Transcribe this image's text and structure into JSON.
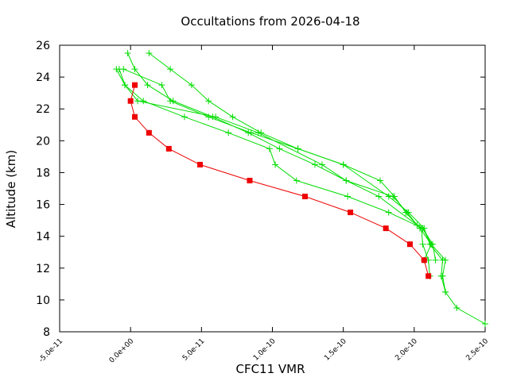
{
  "chart_data": {
    "type": "line",
    "title": "Occultations from 2026-04-18",
    "xlabel": "CFC11 VMR",
    "ylabel": "Altitude (km)",
    "xlim": [
      -5e-11,
      2.5e-10
    ],
    "ylim": [
      8,
      26
    ],
    "x_ticks": [
      -5e-11,
      0,
      5e-11,
      1e-10,
      1.5e-10,
      2e-10,
      2.5e-10
    ],
    "x_tick_labels": [
      "-5.0e-11",
      "0.0e+00",
      "5.0e-11",
      "1.0e-10",
      "1.5e-10",
      "2.0e-10",
      "2.5e-10"
    ],
    "y_ticks": [
      8,
      10,
      12,
      14,
      16,
      18,
      20,
      22,
      24,
      26
    ],
    "y_tick_labels": [
      "8",
      "10",
      "12",
      "14",
      "16",
      "18",
      "20",
      "22",
      "24",
      "26"
    ],
    "grid": false,
    "legend": "none",
    "series": [
      {
        "color": "#00dd00",
        "marker": "plus",
        "points": [
          [
            2.5e-10,
            8.5
          ],
          [
            2.3e-10,
            9.5
          ],
          [
            2.22e-10,
            10.5
          ],
          [
            2.2e-10,
            11.5
          ],
          [
            2.22e-10,
            12.5
          ],
          [
            2.12e-10,
            13.5
          ],
          [
            2.06e-10,
            14.5
          ],
          [
            2.02e-10,
            14.7
          ],
          [
            1.95e-10,
            15.5
          ],
          [
            1.85e-10,
            16.5
          ],
          [
            1.52e-10,
            17.5
          ],
          [
            1.3e-10,
            18.5
          ],
          [
            1.05e-10,
            19.5
          ],
          [
            8.3e-11,
            20.5
          ],
          [
            5.8e-11,
            21.5
          ],
          [
            3e-11,
            22.5
          ],
          [
            1.2e-11,
            23.5
          ],
          [
            3e-12,
            24.5
          ],
          [
            -2e-12,
            25.5
          ]
        ]
      },
      {
        "color": "#00dd00",
        "marker": "plus",
        "points": [
          [
            2.22e-10,
            10.5
          ],
          [
            2.19e-10,
            11.5
          ],
          [
            2.2e-10,
            12.5
          ],
          [
            2.11e-10,
            13.5
          ],
          [
            2.07e-10,
            14.5
          ],
          [
            1.96e-10,
            15.5
          ],
          [
            1.82e-10,
            16.5
          ],
          [
            1.5e-10,
            18.5
          ],
          [
            1.18e-10,
            19.5
          ],
          [
            8.5e-11,
            20.5
          ],
          [
            5.5e-11,
            21.5
          ],
          [
            2.8e-11,
            22.5
          ],
          [
            2.2e-11,
            23.5
          ],
          [
            -5e-12,
            24.5
          ]
        ]
      },
      {
        "color": "#00dd00",
        "marker": "plus",
        "points": [
          [
            2.07e-10,
            12.5
          ],
          [
            2.12e-10,
            13.5
          ],
          [
            2.04e-10,
            14.5
          ],
          [
            1.94e-10,
            15.5
          ],
          [
            1.86e-10,
            16.5
          ],
          [
            1.76e-10,
            17.5
          ],
          [
            1.5e-10,
            18.5
          ],
          [
            1.18e-10,
            19.5
          ],
          [
            9.2e-11,
            20.5
          ],
          [
            7.2e-11,
            21.5
          ],
          [
            5.5e-11,
            22.5
          ],
          [
            4.3e-11,
            23.5
          ],
          [
            2.8e-11,
            24.5
          ],
          [
            1.3e-11,
            25.5
          ]
        ]
      },
      {
        "color": "#00dd00",
        "marker": "plus",
        "points": [
          [
            2.15e-10,
            12.5
          ],
          [
            2.13e-10,
            13.5
          ],
          [
            2.06e-10,
            14.5
          ],
          [
            1.82e-10,
            15.5
          ],
          [
            1.53e-10,
            16.5
          ],
          [
            1.17e-10,
            17.5
          ],
          [
            1.02e-10,
            18.5
          ],
          [
            9.8e-11,
            19.5
          ],
          [
            6.9e-11,
            20.5
          ],
          [
            3.8e-11,
            21.5
          ],
          [
            9e-12,
            22.5
          ],
          [
            -4e-12,
            23.5
          ],
          [
            -8e-12,
            24.5
          ]
        ]
      },
      {
        "color": "#00dd00",
        "marker": "plus",
        "points": [
          [
            2.11e-10,
            11.5
          ],
          [
            2.1e-10,
            12.5
          ],
          [
            2.06e-10,
            13.5
          ],
          [
            2.05e-10,
            14.5
          ],
          [
            1.75e-10,
            16.5
          ],
          [
            1.52e-10,
            17.5
          ],
          [
            1.35e-10,
            18.5
          ],
          [
            9e-11,
            20.5
          ],
          [
            6e-11,
            21.5
          ],
          [
            5e-12,
            22.5
          ],
          [
            -4e-12,
            23.5
          ],
          [
            -1e-11,
            24.5
          ]
        ]
      },
      {
        "color": "#ee0000",
        "marker": "square",
        "points": [
          [
            2.1e-10,
            11.5
          ],
          [
            2.07e-10,
            12.5
          ],
          [
            1.97e-10,
            13.5
          ],
          [
            1.8e-10,
            14.5
          ],
          [
            1.55e-10,
            15.5
          ],
          [
            1.23e-10,
            16.5
          ],
          [
            8.4e-11,
            17.5
          ],
          [
            4.9e-11,
            18.5
          ],
          [
            2.7e-11,
            19.5
          ],
          [
            1.3e-11,
            20.5
          ],
          [
            3e-12,
            21.5
          ],
          [
            0,
            22.5
          ],
          [
            3e-12,
            23.5
          ]
        ]
      }
    ]
  }
}
